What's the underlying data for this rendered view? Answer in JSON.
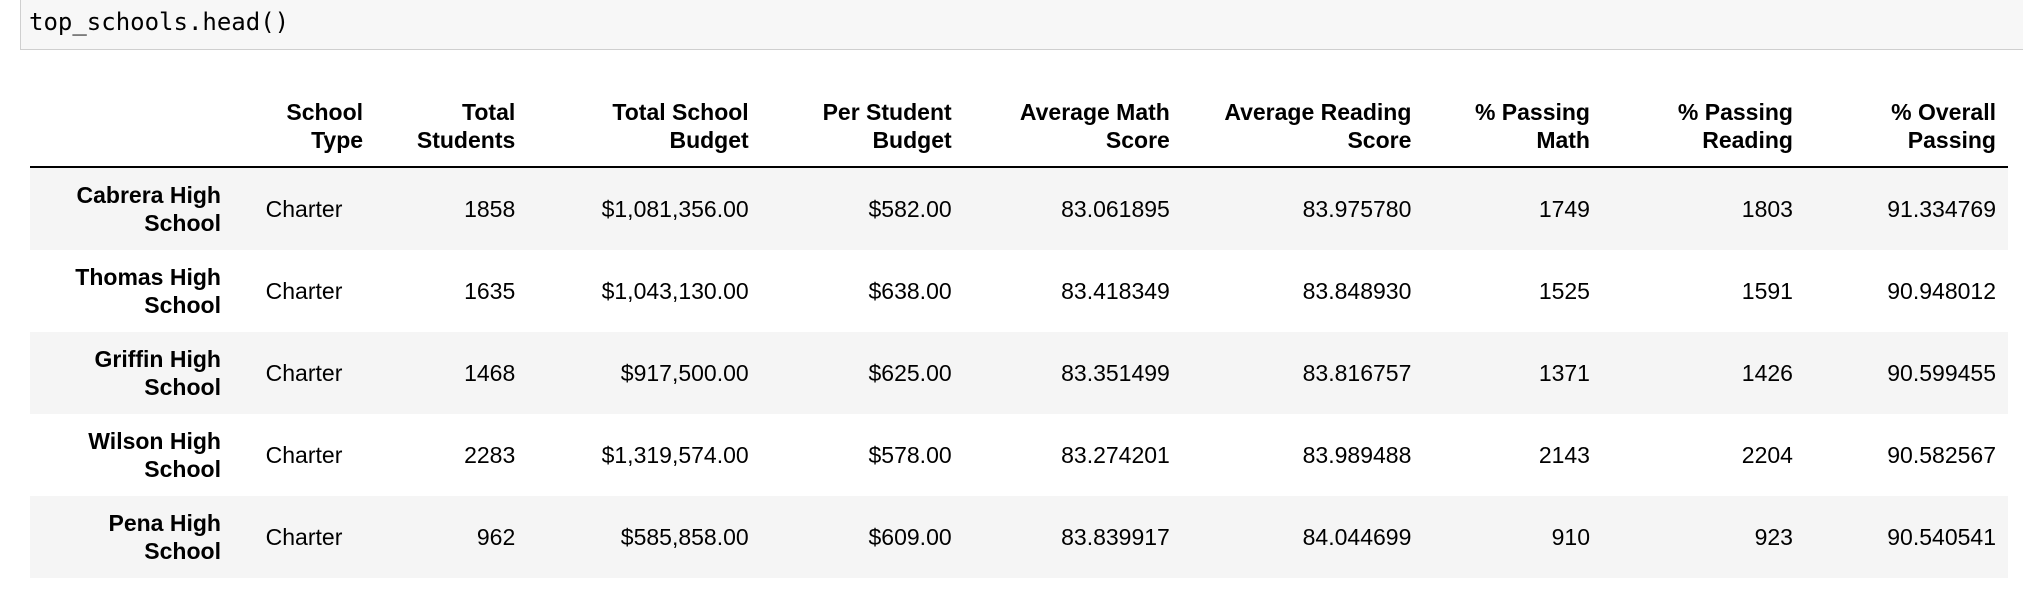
{
  "code_cell": {
    "source": "top_schools.head()"
  },
  "output": {
    "prompt_mark": ":"
  },
  "table": {
    "columns": [
      "",
      "School Type",
      "Total Students",
      "Total School Budget",
      "Per Student Budget",
      "Average Math Score",
      "Average Reading Score",
      "% Passing Math",
      "% Passing Reading",
      "% Overall Passing"
    ],
    "rows": [
      {
        "index": "Cabrera High School",
        "cells": [
          "Charter",
          "1858",
          "$1,081,356.00",
          "$582.00",
          "83.061895",
          "83.975780",
          "1749",
          "1803",
          "91.334769"
        ]
      },
      {
        "index": "Thomas High School",
        "cells": [
          "Charter",
          "1635",
          "$1,043,130.00",
          "$638.00",
          "83.418349",
          "83.848930",
          "1525",
          "1591",
          "90.948012"
        ]
      },
      {
        "index": "Griffin High School",
        "cells": [
          "Charter",
          "1468",
          "$917,500.00",
          "$625.00",
          "83.351499",
          "83.816757",
          "1371",
          "1426",
          "90.599455"
        ]
      },
      {
        "index": "Wilson High School",
        "cells": [
          "Charter",
          "2283",
          "$1,319,574.00",
          "$578.00",
          "83.274201",
          "83.989488",
          "2143",
          "2204",
          "90.582567"
        ]
      },
      {
        "index": "Pena High School",
        "cells": [
          "Charter",
          "962",
          "$585,858.00",
          "$609.00",
          "83.839917",
          "84.044699",
          "910",
          "923",
          "90.540541"
        ]
      }
    ]
  }
}
